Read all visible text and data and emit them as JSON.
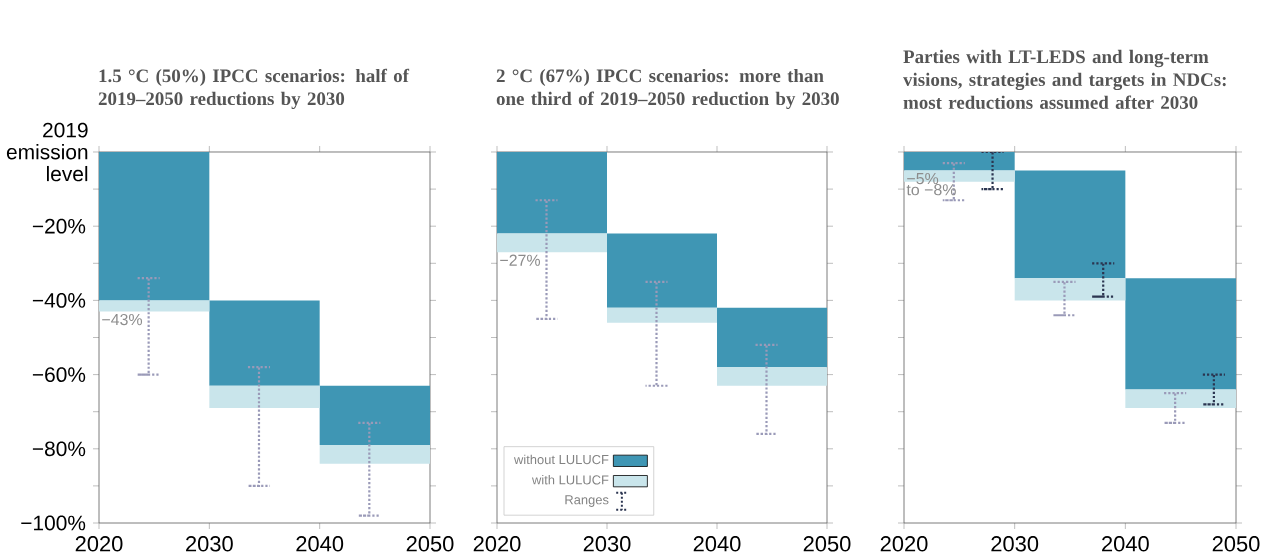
{
  "chart_data": [
    {
      "type": "bar",
      "title": "1.5 °C (50%) IPCC scenarios: half of 2019–2050 reductions by 2030",
      "x": [
        2025,
        2035,
        2045
      ],
      "xlim": [
        2020,
        2050
      ],
      "xticks": [
        2020,
        2030,
        2040,
        2050
      ],
      "ylim": [
        -100,
        0
      ],
      "ylabel": "2019 emission level",
      "yticks": [
        {
          "value": 0,
          "label": null
        },
        {
          "value": -10,
          "label": null
        },
        {
          "value": -20,
          "label": "−20%"
        },
        {
          "value": -30,
          "label": null
        },
        {
          "value": -40,
          "label": "−40%"
        },
        {
          "value": -50,
          "label": null
        },
        {
          "value": -60,
          "label": "−60%"
        },
        {
          "value": -70,
          "label": null
        },
        {
          "value": -80,
          "label": "−80%"
        },
        {
          "value": -90,
          "label": null
        },
        {
          "value": -100,
          "label": "−100%"
        }
      ],
      "series": [
        {
          "color": "#3f96b4",
          "base": [
            0,
            -40,
            -63
          ],
          "values": [
            -40,
            -23,
            -16
          ]
        },
        {
          "color": "#c9e5eb",
          "base": [
            -40,
            -63,
            -79
          ],
          "values": [
            -3,
            -6,
            -5
          ],
          "errors": [
            [
              -60,
              -34
            ],
            [
              -90,
              -58
            ],
            [
              -98,
              -73
            ]
          ]
        }
      ],
      "annotations": [
        {
          "text": "−43%",
          "y": -43
        }
      ]
    },
    {
      "type": "bar",
      "title": "2 °C (67%) IPCC scenarios: more than one third of 2019–2050 reduction by 2030",
      "x": [
        2025,
        2035,
        2045
      ],
      "xlim": [
        2020,
        2050
      ],
      "xticks": [
        2020,
        2030,
        2040,
        2050
      ],
      "ylim": [
        -100,
        0
      ],
      "yticks": [
        0,
        -10,
        -20,
        -30,
        -40,
        -50,
        -60,
        -70,
        -80,
        -90,
        -100
      ],
      "tick_labels": "x",
      "legend": "bottom left",
      "series": [
        {
          "name": "without LULUCF",
          "color": "#3f96b4",
          "base": [
            0,
            -22,
            -42
          ],
          "values": [
            -22,
            -20,
            -16
          ]
        },
        {
          "name": "with LULUCF",
          "color": "#c9e5eb",
          "base": [
            -22,
            -42,
            -58
          ],
          "values": [
            -5,
            -4,
            -5
          ],
          "errors": [
            [
              -45,
              -13
            ],
            [
              -63,
              -35
            ],
            [
              -76,
              -52
            ]
          ]
        }
      ],
      "annotations": [
        {
          "text": "−27%",
          "y": -27
        },
        "Ranges"
      ]
    },
    {
      "type": "bar",
      "title": "Parties with LT-LEDS and long-term visions, strategies and targets in NDCs: most reductions assumed after 2030",
      "x": [
        2025,
        2035,
        2045
      ],
      "xlim": [
        2020,
        2050
      ],
      "xticks": [
        2020,
        2030,
        2040,
        2050
      ],
      "ylim": [
        -100,
        0
      ],
      "yticks": [
        0,
        -10,
        -20,
        -30,
        -40,
        -50,
        -60,
        -70,
        -80,
        -90,
        -100
      ],
      "tick_labels": "x",
      "series": [
        {
          "color": "#3f96b4",
          "base": [
            0,
            -5,
            -34
          ],
          "values": [
            -5,
            -29,
            -30
          ],
          "errors": [
            [
              -10,
              0
            ],
            [
              -39,
              -30
            ],
            [
              -68,
              -60
            ]
          ]
        },
        {
          "color": "#c9e5eb",
          "base": [
            -5,
            -34,
            -64
          ],
          "values": [
            -3,
            -6,
            -5
          ],
          "errors": [
            [
              -13,
              -3
            ],
            [
              -44,
              -35
            ],
            [
              -73,
              -65
            ]
          ]
        }
      ],
      "annotations": [
        {
          "text": "−5%",
          "y": -5
        },
        {
          "text": "to −8%",
          "y": -8
        }
      ]
    }
  ]
}
